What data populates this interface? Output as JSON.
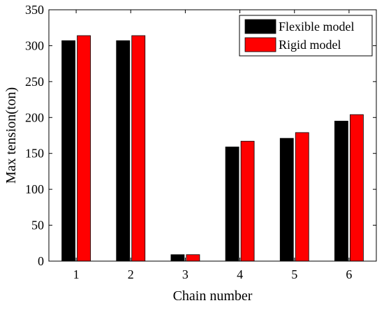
{
  "chart_data": {
    "type": "bar",
    "title": "",
    "xlabel": "Chain number",
    "ylabel": "Max tension(ton)",
    "categories": [
      "1",
      "2",
      "3",
      "4",
      "5",
      "6"
    ],
    "ylim": [
      0,
      350
    ],
    "yticks": [
      0,
      50,
      100,
      150,
      200,
      250,
      300,
      350
    ],
    "grid": false,
    "legend_position": "top-right",
    "series": [
      {
        "name": "Flexible model",
        "color": "#000000",
        "values": [
          307,
          307,
          9,
          159,
          171,
          195
        ]
      },
      {
        "name": "Rigid model",
        "color": "#ff0000",
        "values": [
          314,
          314,
          9,
          167,
          179,
          204
        ]
      }
    ]
  }
}
